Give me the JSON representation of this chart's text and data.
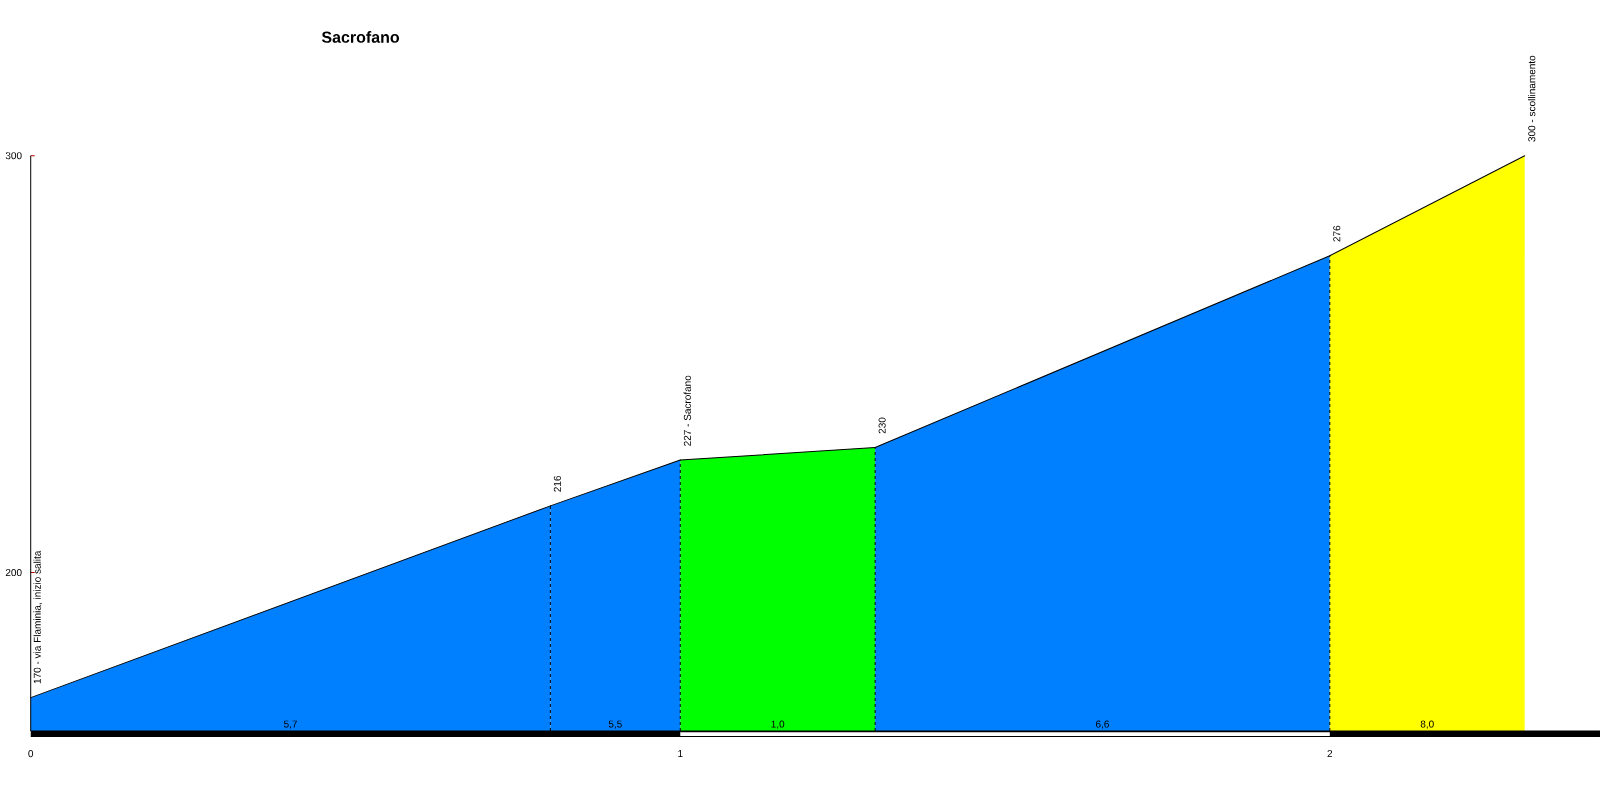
{
  "chart_data": {
    "type": "area",
    "title": "Sacrofano",
    "xlim": [
      0,
      2.416
    ],
    "ylim": [
      162,
      300
    ],
    "xticks": [
      0,
      1,
      2
    ],
    "yticks": [
      200,
      300
    ],
    "series": [
      {
        "x": [
          0,
          0.8
        ],
        "values": [
          170,
          216
        ],
        "color": "#0080ff"
      },
      {
        "x": [
          0.8,
          1.0
        ],
        "values": [
          216,
          227
        ],
        "color": "#0080ff"
      },
      {
        "x": [
          1.0,
          1.3
        ],
        "values": [
          227,
          230
        ],
        "color": "#00ff00"
      },
      {
        "x": [
          1.3,
          2.0
        ],
        "values": [
          230,
          276
        ],
        "color": "#0080ff"
      },
      {
        "x": [
          2.0,
          2.3
        ],
        "values": [
          276,
          300
        ],
        "color": "#ffff00"
      }
    ],
    "ref_lines": [
      {
        "axis": "x",
        "value": 0.8,
        "color": "#000000",
        "line_style": "dashed"
      },
      {
        "axis": "x",
        "value": 1.0,
        "color": "#000000",
        "line_style": "dashed"
      },
      {
        "axis": "x",
        "value": 1.3,
        "color": "#000000",
        "line_style": "dashed"
      },
      {
        "axis": "x",
        "value": 2.0,
        "color": "#000000",
        "line_style": "dashed"
      }
    ],
    "annotations": [
      {
        "text": "170 - via Flaminia, inizio salita",
        "x": 0,
        "y": 170
      },
      {
        "text": "216",
        "x": 0.8,
        "y": 216
      },
      {
        "text": "227 - Sacrofano",
        "x": 1.0,
        "y": 227
      },
      {
        "text": "230",
        "x": 1.3,
        "y": 230
      },
      {
        "text": "276",
        "x": 2.0,
        "y": 276
      },
      {
        "text": "300 - scollinamento",
        "x": 2.3,
        "y": 300
      },
      "5,7",
      "5,5",
      "1,0",
      "6,6",
      "8,0"
    ]
  }
}
